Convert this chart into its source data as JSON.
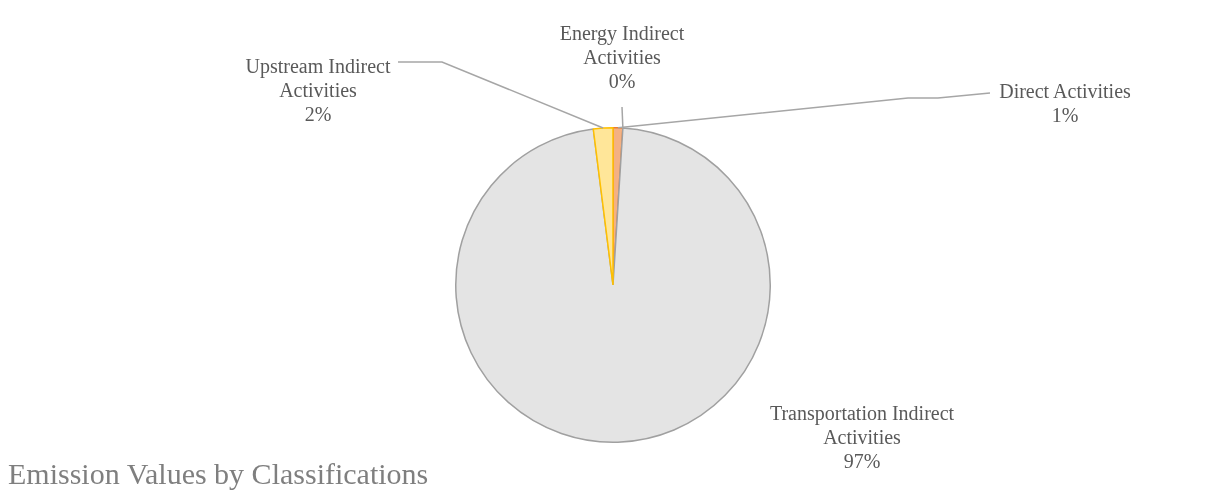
{
  "chart_data": {
    "type": "pie",
    "title": "Emission Values by Classifications",
    "categories": [
      "Direct Activities",
      "Energy Indirect Activities",
      "Transportation Indirect Activities",
      "Upstream Indirect Activities"
    ],
    "values": [
      1,
      0,
      97,
      2
    ],
    "colors": [
      "#f4b183",
      "#a5a5a5",
      "#e4e4e4",
      "#ffe699"
    ],
    "value_labels": [
      "1%",
      "0%",
      "97%",
      "2%"
    ],
    "legend": false
  }
}
